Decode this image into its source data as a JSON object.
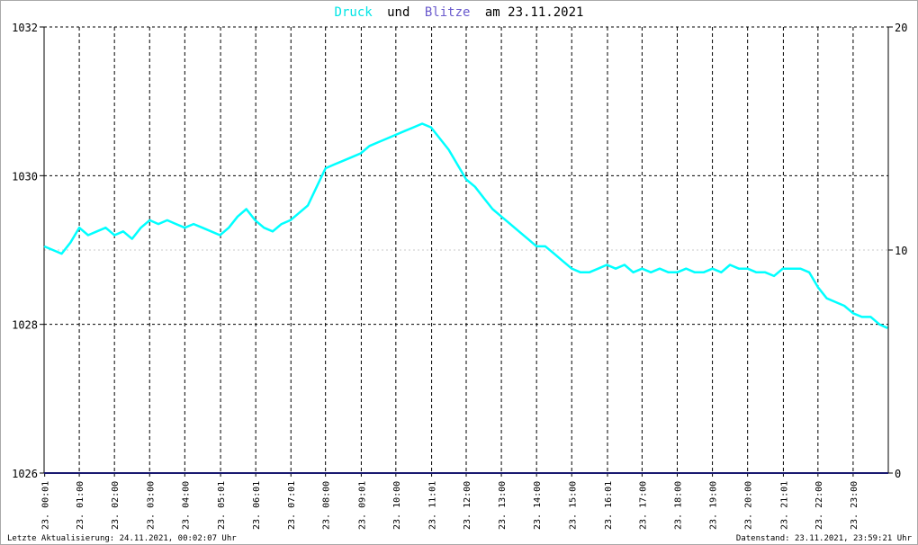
{
  "title": {
    "part1": "Druck",
    "part2": "und",
    "part3": "Blitze",
    "part4": "am 23.11.2021",
    "colors": {
      "part1": "#00e5e5",
      "part2": "#000000",
      "part3": "#6a5acd",
      "part4": "#000000"
    }
  },
  "footer": {
    "left": "Letzte Aktualisierung: 24.11.2021, 00:02:07 Uhr",
    "right": "Datenstand: 23.11.2021, 23:59:21 Uhr"
  },
  "chart_data": {
    "type": "line",
    "title": "Druck und Blitze am 23.11.2021",
    "x_unit": "hours",
    "xlim": [
      0,
      24
    ],
    "y_left": {
      "ylim": [
        1026,
        1032
      ],
      "ticks": [
        "1026",
        "1028",
        "1030",
        "1032"
      ]
    },
    "y_right": {
      "ylim": [
        0,
        20
      ],
      "ticks": [
        "0",
        "10",
        "20"
      ]
    },
    "x_ticks": [
      {
        "pos": 0.017,
        "label": "23. 00:01"
      },
      {
        "pos": 1.0,
        "label": "23. 01:00"
      },
      {
        "pos": 2.0,
        "label": "23. 02:00"
      },
      {
        "pos": 3.0,
        "label": "23. 03:00"
      },
      {
        "pos": 4.0,
        "label": "23. 04:00"
      },
      {
        "pos": 5.017,
        "label": "23. 05:01"
      },
      {
        "pos": 6.017,
        "label": "23. 06:01"
      },
      {
        "pos": 7.017,
        "label": "23. 07:01"
      },
      {
        "pos": 8.0,
        "label": "23. 08:00"
      },
      {
        "pos": 9.017,
        "label": "23. 09:01"
      },
      {
        "pos": 10.0,
        "label": "23. 10:00"
      },
      {
        "pos": 11.017,
        "label": "23. 11:01"
      },
      {
        "pos": 12.0,
        "label": "23. 12:00"
      },
      {
        "pos": 13.0,
        "label": "23. 13:00"
      },
      {
        "pos": 14.0,
        "label": "23. 14:00"
      },
      {
        "pos": 15.0,
        "label": "23. 15:00"
      },
      {
        "pos": 16.017,
        "label": "23. 16:01"
      },
      {
        "pos": 17.0,
        "label": "23. 17:00"
      },
      {
        "pos": 18.0,
        "label": "23. 18:00"
      },
      {
        "pos": 19.0,
        "label": "23. 19:00"
      },
      {
        "pos": 20.0,
        "label": "23. 20:00"
      },
      {
        "pos": 21.017,
        "label": "23. 21:01"
      },
      {
        "pos": 22.0,
        "label": "23. 22:00"
      },
      {
        "pos": 23.0,
        "label": "23. 23:00"
      }
    ],
    "grid": true,
    "series": [
      {
        "name": "Druck",
        "axis": "left",
        "color": "#00ffff",
        "x": [
          0.0,
          0.25,
          0.5,
          0.75,
          1.0,
          1.25,
          1.5,
          1.75,
          2.0,
          2.25,
          2.5,
          2.75,
          3.0,
          3.25,
          3.5,
          3.75,
          4.0,
          4.25,
          4.5,
          4.75,
          5.0,
          5.25,
          5.5,
          5.75,
          6.0,
          6.25,
          6.5,
          6.75,
          7.0,
          7.25,
          7.5,
          7.75,
          8.0,
          8.25,
          8.5,
          8.75,
          9.0,
          9.25,
          9.5,
          9.75,
          10.0,
          10.25,
          10.5,
          10.75,
          11.0,
          11.25,
          11.5,
          11.75,
          12.0,
          12.25,
          12.5,
          12.75,
          13.0,
          13.25,
          13.5,
          13.75,
          14.0,
          14.25,
          14.5,
          14.75,
          15.0,
          15.25,
          15.5,
          15.75,
          16.0,
          16.25,
          16.5,
          16.75,
          17.0,
          17.25,
          17.5,
          17.75,
          18.0,
          18.25,
          18.5,
          18.75,
          19.0,
          19.25,
          19.5,
          19.75,
          20.0,
          20.25,
          20.5,
          20.75,
          21.0,
          21.25,
          21.5,
          21.75,
          22.0,
          22.25,
          22.5,
          22.75,
          23.0,
          23.25,
          23.5,
          23.75,
          23.98
        ],
        "values": [
          1029.05,
          1029.0,
          1028.95,
          1029.1,
          1029.3,
          1029.2,
          1029.25,
          1029.3,
          1029.2,
          1029.25,
          1029.15,
          1029.3,
          1029.4,
          1029.35,
          1029.4,
          1029.35,
          1029.3,
          1029.35,
          1029.3,
          1029.25,
          1029.2,
          1029.3,
          1029.45,
          1029.55,
          1029.4,
          1029.3,
          1029.25,
          1029.35,
          1029.4,
          1029.5,
          1029.6,
          1029.85,
          1030.1,
          1030.15,
          1030.2,
          1030.25,
          1030.3,
          1030.4,
          1030.45,
          1030.5,
          1030.55,
          1030.6,
          1030.65,
          1030.7,
          1030.65,
          1030.5,
          1030.35,
          1030.15,
          1029.95,
          1029.85,
          1029.7,
          1029.55,
          1029.45,
          1029.35,
          1029.25,
          1029.15,
          1029.05,
          1029.05,
          1028.95,
          1028.85,
          1028.75,
          1028.7,
          1028.7,
          1028.75,
          1028.8,
          1028.75,
          1028.8,
          1028.7,
          1028.75,
          1028.7,
          1028.75,
          1028.7,
          1028.7,
          1028.75,
          1028.7,
          1028.7,
          1028.75,
          1028.7,
          1028.8,
          1028.75,
          1028.75,
          1028.7,
          1028.7,
          1028.65,
          1028.75,
          1028.75,
          1028.75,
          1028.7,
          1028.5,
          1028.35,
          1028.3,
          1028.25,
          1028.15,
          1028.1,
          1028.1,
          1028.0,
          1027.95
        ]
      },
      {
        "name": "Blitze",
        "axis": "right",
        "color": "#191970",
        "x": [
          0,
          24
        ],
        "values": [
          0,
          0
        ]
      }
    ]
  }
}
